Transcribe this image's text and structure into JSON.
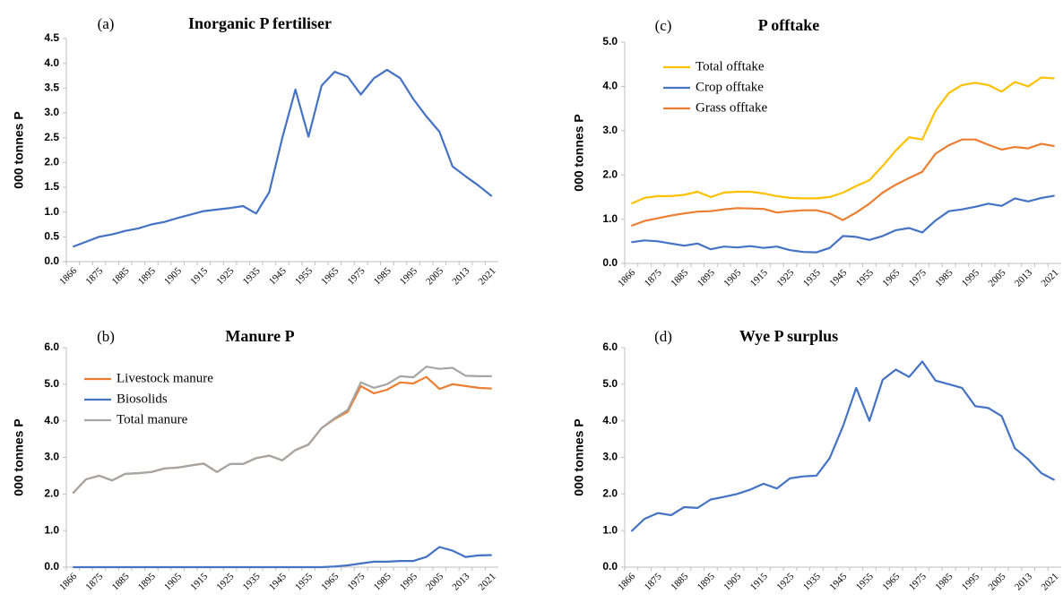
{
  "chart_data": [
    {
      "type": "line",
      "panel_label": "(a)",
      "title": "Inorganic P fertiliser",
      "y_label": "000 tonnes P",
      "categories": [
        "1866",
        null,
        "1875",
        null,
        "1885",
        null,
        "1895",
        null,
        "1905",
        null,
        "1915",
        null,
        "1925",
        null,
        "1935",
        null,
        "1945",
        null,
        "1955",
        null,
        "1965",
        null,
        "1975",
        null,
        "1985",
        null,
        "1995",
        null,
        "2005",
        null,
        "2013",
        null,
        "2021"
      ],
      "series": [
        {
          "name": null,
          "color": "#4472c4",
          "values": [
            0.3,
            0.4,
            0.5,
            0.55,
            0.62,
            0.67,
            0.75,
            0.8,
            0.88,
            0.95,
            1.02,
            1.05,
            1.08,
            1.12,
            0.97,
            1.4,
            2.5,
            3.47,
            2.52,
            3.55,
            3.83,
            3.73,
            3.37,
            3.7,
            3.87,
            3.7,
            3.28,
            2.93,
            2.62,
            1.92,
            1.72,
            1.53,
            1.32
          ]
        }
      ],
      "ylim": [
        0,
        4.5
      ],
      "yticks": [
        {
          "value": 0,
          "label": "0.0"
        },
        0.5,
        {
          "value": 1,
          "label": "1.0"
        },
        1.5,
        {
          "value": 2,
          "label": "2.0"
        },
        2.5,
        {
          "value": 3,
          "label": "3.0"
        },
        3.5,
        {
          "value": 4,
          "label": "4.0"
        },
        4.5
      ]
    },
    {
      "type": "line",
      "panel_label": "(b)",
      "title": "Manure P",
      "y_label": "000 tonnes P",
      "categories": [
        "1866",
        null,
        "1875",
        null,
        "1885",
        null,
        "1895",
        null,
        "1905",
        null,
        "1915",
        null,
        "1925",
        null,
        "1935",
        null,
        "1945",
        null,
        "1955",
        null,
        "1965",
        null,
        "1975",
        null,
        "1985",
        null,
        "1995",
        null,
        "2005",
        null,
        "2013",
        null,
        "2021"
      ],
      "series": [
        {
          "name": "Livestock manure",
          "color": "#ed7d31",
          "values": [
            2.02,
            2.4,
            2.5,
            2.37,
            2.55,
            2.57,
            2.6,
            2.7,
            2.72,
            2.78,
            2.83,
            2.6,
            2.82,
            2.82,
            2.98,
            3.05,
            2.92,
            3.2,
            3.35,
            3.8,
            4.05,
            4.25,
            4.95,
            4.75,
            4.85,
            5.05,
            5.02,
            5.2,
            4.87,
            5.0,
            4.95,
            4.9,
            4.88
          ]
        },
        {
          "name": "Biosolids",
          "color": "#4472c4",
          "values": [
            0,
            0,
            0,
            0,
            0,
            0,
            0,
            0,
            0,
            0,
            0,
            0,
            0,
            0,
            0,
            0,
            0,
            0,
            0,
            0,
            0.02,
            0.05,
            0.1,
            0.15,
            0.15,
            0.17,
            0.17,
            0.28,
            0.55,
            0.45,
            0.28,
            0.32,
            0.33
          ]
        },
        {
          "name": "Total manure",
          "color": "#a5a5a5",
          "values": [
            2.02,
            2.4,
            2.5,
            2.37,
            2.55,
            2.57,
            2.6,
            2.7,
            2.72,
            2.78,
            2.83,
            2.6,
            2.82,
            2.82,
            2.98,
            3.05,
            2.92,
            3.2,
            3.35,
            3.8,
            4.07,
            4.3,
            5.05,
            4.9,
            5.0,
            5.22,
            5.19,
            5.48,
            5.42,
            5.45,
            5.23,
            5.22,
            5.22
          ]
        }
      ],
      "ylim": [
        0,
        6
      ],
      "yticks": [
        {
          "value": 0,
          "label": "0.0"
        },
        {
          "value": 1,
          "label": "1.0"
        },
        {
          "value": 2,
          "label": "2.0"
        },
        {
          "value": 3,
          "label": "3.0"
        },
        {
          "value": 4,
          "label": "4.0"
        },
        {
          "value": 5,
          "label": "5.0"
        },
        {
          "value": 6,
          "label": "6.0"
        }
      ]
    },
    {
      "type": "line",
      "panel_label": "(c)",
      "title": "P offtake",
      "y_label": "000 tonnes P",
      "categories": [
        "1866",
        null,
        "1875",
        null,
        "1885",
        null,
        "1895",
        null,
        "1905",
        null,
        "1915",
        null,
        "1925",
        null,
        "1935",
        null,
        "1945",
        null,
        "1955",
        null,
        "1965",
        null,
        "1975",
        null,
        "1985",
        null,
        "1995",
        null,
        "2005",
        null,
        "2013",
        null,
        "2021"
      ],
      "series": [
        {
          "name": "Total offtake",
          "color": "#ffc000",
          "values": [
            1.35,
            1.48,
            1.52,
            1.52,
            1.55,
            1.62,
            1.5,
            1.6,
            1.62,
            1.62,
            1.58,
            1.52,
            1.48,
            1.47,
            1.47,
            1.5,
            1.6,
            1.75,
            1.88,
            2.2,
            2.55,
            2.85,
            2.8,
            3.45,
            3.85,
            4.03,
            4.08,
            4.03,
            3.88,
            4.1,
            4.0,
            4.2,
            4.18
          ]
        },
        {
          "name": "Crop offtake",
          "color": "#4472c4",
          "values": [
            0.48,
            0.52,
            0.5,
            0.45,
            0.4,
            0.45,
            0.32,
            0.38,
            0.36,
            0.39,
            0.35,
            0.38,
            0.3,
            0.26,
            0.25,
            0.35,
            0.62,
            0.6,
            0.53,
            0.62,
            0.75,
            0.8,
            0.7,
            0.97,
            1.18,
            1.22,
            1.28,
            1.35,
            1.3,
            1.47,
            1.4,
            1.48,
            1.53
          ]
        },
        {
          "name": "Grass offtake",
          "color": "#ed7d31",
          "values": [
            0.85,
            0.96,
            1.02,
            1.08,
            1.13,
            1.17,
            1.18,
            1.22,
            1.25,
            1.24,
            1.23,
            1.15,
            1.18,
            1.2,
            1.2,
            1.13,
            0.98,
            1.15,
            1.35,
            1.6,
            1.78,
            1.93,
            2.07,
            2.48,
            2.67,
            2.8,
            2.8,
            2.68,
            2.57,
            2.63,
            2.6,
            2.7,
            2.65
          ]
        }
      ],
      "ylim": [
        0,
        5
      ],
      "yticks": [
        {
          "value": 0,
          "label": "0.0"
        },
        {
          "value": 1,
          "label": "1.0"
        },
        {
          "value": 2,
          "label": "2.0"
        },
        {
          "value": 3,
          "label": "3.0"
        },
        {
          "value": 4,
          "label": "4.0"
        },
        {
          "value": 5,
          "label": "5.0"
        }
      ]
    },
    {
      "type": "line",
      "panel_label": "(d)",
      "title": "Wye P surplus",
      "y_label": "000 tonnes P",
      "categories": [
        "1866",
        null,
        "1875",
        null,
        "1885",
        null,
        "1895",
        null,
        "1905",
        null,
        "1915",
        null,
        "1925",
        null,
        "1935",
        null,
        "1945",
        null,
        "1955",
        null,
        "1965",
        null,
        "1975",
        null,
        "1985",
        null,
        "1995",
        null,
        "2005",
        null,
        "2013",
        null,
        "2021"
      ],
      "series": [
        {
          "name": null,
          "color": "#4472c4",
          "values": [
            0.98,
            1.32,
            1.48,
            1.42,
            1.64,
            1.62,
            1.85,
            1.92,
            2.0,
            2.12,
            2.28,
            2.15,
            2.43,
            2.48,
            2.5,
            2.98,
            3.85,
            4.9,
            4.0,
            5.12,
            5.4,
            5.2,
            5.62,
            5.1,
            5.0,
            4.9,
            4.4,
            4.35,
            4.13,
            3.25,
            2.95,
            2.57,
            2.38
          ]
        }
      ],
      "ylim": [
        0,
        6
      ],
      "yticks": [
        {
          "value": 0,
          "label": "0.0"
        },
        {
          "value": 1,
          "label": "1.0"
        },
        {
          "value": 2,
          "label": "2.0"
        },
        {
          "value": 3,
          "label": "3.0"
        },
        {
          "value": 4,
          "label": "4.0"
        },
        {
          "value": 5,
          "label": "5.0"
        },
        {
          "value": 6,
          "label": "6.0"
        }
      ]
    }
  ]
}
